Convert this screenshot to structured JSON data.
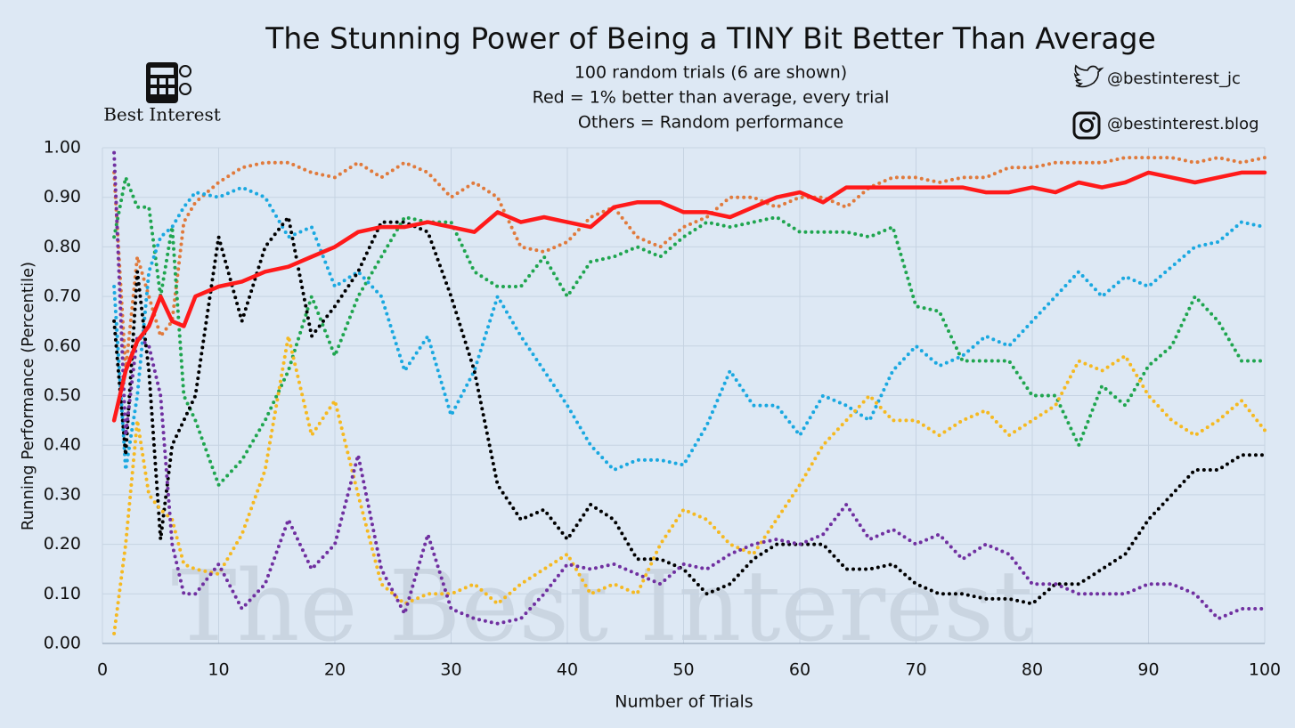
{
  "chart_data": {
    "type": "line",
    "title": "The Stunning Power of Being a TINY Bit Better Than Average",
    "subtitle": [
      "100 random trials (6 are shown)",
      "Red = 1% better than average, every trial",
      "Others = Random performance"
    ],
    "logo_text": "Best Interest",
    "watermark": "The Best Interest",
    "twitter": "@bestinterest_jc",
    "instagram": "@bestinterest.blog",
    "x_label": "Number of Trials",
    "y_label": "Running Performance (Percentile)",
    "xlim": [
      0,
      100
    ],
    "xticks": [
      0,
      10,
      20,
      30,
      40,
      50,
      60,
      70,
      80,
      90,
      100
    ],
    "ylim": [
      0,
      1
    ],
    "yticks": [
      {
        "value": 0,
        "label": "0.00"
      },
      {
        "value": 0.1,
        "label": "0.10"
      },
      {
        "value": 0.2,
        "label": "0.20"
      },
      {
        "value": 0.3,
        "label": "0.30"
      },
      {
        "value": 0.4,
        "label": "0.40"
      },
      {
        "value": 0.5,
        "label": "0.50"
      },
      {
        "value": 0.6,
        "label": "0.60"
      },
      {
        "value": 0.7,
        "label": "0.70"
      },
      {
        "value": 0.8,
        "label": "0.80"
      },
      {
        "value": 0.9,
        "label": "0.90"
      },
      {
        "value": 1,
        "label": "1.00"
      }
    ],
    "grid": true,
    "x": [
      1,
      2,
      3,
      4,
      5,
      6,
      7,
      8,
      10,
      12,
      14,
      16,
      18,
      20,
      22,
      24,
      26,
      28,
      30,
      32,
      34,
      36,
      38,
      40,
      42,
      44,
      46,
      48,
      50,
      52,
      54,
      56,
      58,
      60,
      62,
      64,
      66,
      68,
      70,
      72,
      74,
      76,
      78,
      80,
      82,
      84,
      86,
      88,
      90,
      92,
      94,
      96,
      98,
      100
    ],
    "series": [
      {
        "color": "#e07a3c",
        "style": "dotted",
        "values": [
          0.95,
          0.55,
          0.78,
          0.7,
          0.62,
          0.65,
          0.85,
          0.89,
          0.93,
          0.96,
          0.97,
          0.97,
          0.95,
          0.94,
          0.97,
          0.94,
          0.97,
          0.95,
          0.9,
          0.93,
          0.9,
          0.8,
          0.79,
          0.81,
          0.86,
          0.88,
          0.82,
          0.8,
          0.84,
          0.86,
          0.9,
          0.9,
          0.88,
          0.9,
          0.9,
          0.88,
          0.92,
          0.94,
          0.94,
          0.93,
          0.94,
          0.94,
          0.96,
          0.96,
          0.97,
          0.97,
          0.97,
          0.98,
          0.98,
          0.98,
          0.97,
          0.98,
          0.97,
          0.98
        ]
      },
      {
        "color": "#1fa54f",
        "style": "dotted",
        "values": [
          0.82,
          0.94,
          0.88,
          0.88,
          0.7,
          0.84,
          0.5,
          0.45,
          0.32,
          0.37,
          0.45,
          0.55,
          0.7,
          0.58,
          0.7,
          0.78,
          0.86,
          0.85,
          0.85,
          0.75,
          0.72,
          0.72,
          0.78,
          0.7,
          0.77,
          0.78,
          0.8,
          0.78,
          0.82,
          0.85,
          0.84,
          0.85,
          0.86,
          0.83,
          0.83,
          0.83,
          0.82,
          0.84,
          0.68,
          0.67,
          0.57,
          0.57,
          0.57,
          0.5,
          0.5,
          0.4,
          0.52,
          0.48,
          0.56,
          0.6,
          0.7,
          0.65,
          0.57,
          0.57
        ]
      },
      {
        "color": "#1aa8e0",
        "style": "dotted",
        "values": [
          0.72,
          0.35,
          0.5,
          0.75,
          0.82,
          0.84,
          0.88,
          0.91,
          0.9,
          0.92,
          0.9,
          0.82,
          0.84,
          0.72,
          0.75,
          0.7,
          0.55,
          0.62,
          0.46,
          0.55,
          0.7,
          0.62,
          0.55,
          0.48,
          0.4,
          0.35,
          0.37,
          0.37,
          0.36,
          0.44,
          0.55,
          0.48,
          0.48,
          0.42,
          0.5,
          0.48,
          0.45,
          0.55,
          0.6,
          0.56,
          0.58,
          0.62,
          0.6,
          0.65,
          0.7,
          0.75,
          0.7,
          0.74,
          0.72,
          0.76,
          0.8,
          0.81,
          0.85,
          0.84
        ]
      },
      {
        "color": "#000000",
        "style": "dotted",
        "values": [
          0.65,
          0.38,
          0.75,
          0.55,
          0.21,
          0.4,
          0.45,
          0.5,
          0.82,
          0.65,
          0.8,
          0.86,
          0.62,
          0.68,
          0.75,
          0.85,
          0.85,
          0.83,
          0.7,
          0.55,
          0.32,
          0.25,
          0.27,
          0.21,
          0.28,
          0.25,
          0.17,
          0.17,
          0.15,
          0.1,
          0.12,
          0.17,
          0.2,
          0.2,
          0.2,
          0.15,
          0.15,
          0.16,
          0.12,
          0.1,
          0.1,
          0.09,
          0.09,
          0.08,
          0.12,
          0.12,
          0.15,
          0.18,
          0.25,
          0.3,
          0.35,
          0.35,
          0.38,
          0.38
        ]
      },
      {
        "color": "#f5b921",
        "style": "dotted",
        "values": [
          0.02,
          0.2,
          0.45,
          0.3,
          0.27,
          0.25,
          0.16,
          0.15,
          0.14,
          0.22,
          0.35,
          0.62,
          0.42,
          0.49,
          0.3,
          0.12,
          0.08,
          0.1,
          0.1,
          0.12,
          0.08,
          0.12,
          0.15,
          0.18,
          0.1,
          0.12,
          0.1,
          0.2,
          0.27,
          0.25,
          0.2,
          0.18,
          0.25,
          0.32,
          0.4,
          0.45,
          0.5,
          0.45,
          0.45,
          0.42,
          0.45,
          0.47,
          0.42,
          0.45,
          0.48,
          0.57,
          0.55,
          0.58,
          0.5,
          0.45,
          0.42,
          0.45,
          0.49,
          0.43
        ]
      },
      {
        "color": "#7030a0",
        "style": "dotted",
        "values": [
          0.99,
          0.42,
          0.62,
          0.6,
          0.5,
          0.2,
          0.1,
          0.1,
          0.16,
          0.07,
          0.12,
          0.25,
          0.15,
          0.2,
          0.38,
          0.15,
          0.06,
          0.22,
          0.07,
          0.05,
          0.04,
          0.05,
          0.1,
          0.16,
          0.15,
          0.16,
          0.14,
          0.12,
          0.16,
          0.15,
          0.18,
          0.2,
          0.21,
          0.2,
          0.22,
          0.28,
          0.21,
          0.23,
          0.2,
          0.22,
          0.17,
          0.2,
          0.18,
          0.12,
          0.12,
          0.1,
          0.1,
          0.1,
          0.12,
          0.12,
          0.1,
          0.05,
          0.07,
          0.07
        ]
      },
      {
        "color": "#ff1a1a",
        "style": "solid",
        "values": [
          0.45,
          0.55,
          0.61,
          0.64,
          0.7,
          0.65,
          0.64,
          0.7,
          0.72,
          0.73,
          0.75,
          0.76,
          0.78,
          0.8,
          0.83,
          0.84,
          0.84,
          0.85,
          0.84,
          0.83,
          0.87,
          0.85,
          0.86,
          0.85,
          0.84,
          0.88,
          0.89,
          0.89,
          0.87,
          0.87,
          0.86,
          0.88,
          0.9,
          0.91,
          0.89,
          0.92,
          0.92,
          0.92,
          0.92,
          0.92,
          0.92,
          0.91,
          0.91,
          0.92,
          0.91,
          0.93,
          0.92,
          0.93,
          0.95,
          0.94,
          0.93,
          0.94,
          0.95,
          0.95
        ]
      }
    ]
  }
}
